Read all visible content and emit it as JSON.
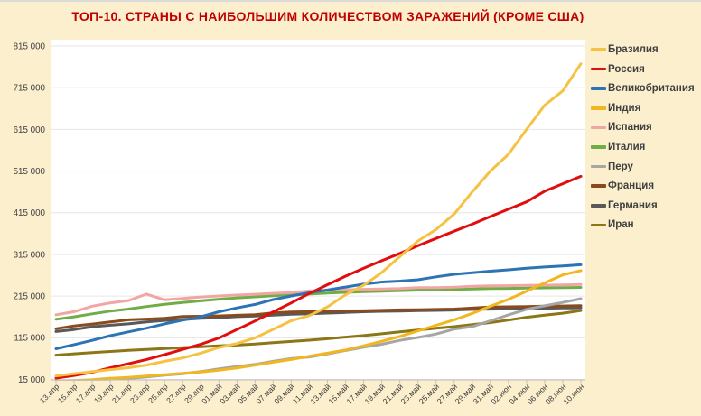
{
  "page": {
    "background": "#FCEFCE",
    "top_strip_color": "#DADADA"
  },
  "chart_data": {
    "type": "line",
    "title": "ТОП-10. СТРАНЫ С НАИБОЛЬШИМ КОЛИЧЕСТВОМ ЗАРАЖЕНИЙ (КРОМЕ США)",
    "title_color": "#C00000",
    "xlabel": "",
    "ylabel": "",
    "ylim": [
      15000,
      815000
    ],
    "grid": true,
    "legend_position": "right",
    "axis_text_color": "#404040",
    "gridline_color": "#E6E6E6",
    "axis_line_color": "#BFBFBF",
    "plot_background": "#FFFFFF",
    "y_ticks": [
      {
        "value": 15000,
        "label": "15 000"
      },
      {
        "value": 115000,
        "label": "115 000"
      },
      {
        "value": 215000,
        "label": "215 000"
      },
      {
        "value": 315000,
        "label": "315 000"
      },
      {
        "value": 415000,
        "label": "415 000"
      },
      {
        "value": 515000,
        "label": "515 000"
      },
      {
        "value": 615000,
        "label": "615 000"
      },
      {
        "value": 715000,
        "label": "715 000"
      },
      {
        "value": 815000,
        "label": "815 000"
      }
    ],
    "categories": [
      "13.апр",
      "15.апр",
      "17.апр",
      "19.апр",
      "21.апр",
      "23.апр",
      "25.апр",
      "27.апр",
      "29.апр",
      "01.май",
      "03.май",
      "05.май",
      "07.май",
      "09.май",
      "11.май",
      "13.май",
      "15.май",
      "17.май",
      "19.май",
      "21.май",
      "23.май",
      "25.май",
      "27.май",
      "29.май",
      "31.май",
      "02.июн",
      "04.июн",
      "06.июн",
      "08.июн",
      "10.июн"
    ],
    "series": [
      {
        "name": "Бразилия",
        "color": "#F5C243",
        "values": [
          23430,
          28320,
          33682,
          38654,
          43079,
          49492,
          58509,
          66501,
          78162,
          91589,
          101147,
          114715,
          135106,
          155939,
          168331,
          188974,
          218223,
          241080,
          271628,
          310087,
          347398,
          374898,
          411821,
          465166,
          514849,
          555383,
          614941,
          672846,
          707412,
          772416
        ]
      },
      {
        "name": "Россия",
        "color": "#E00E0E",
        "values": [
          18328,
          24490,
          32008,
          42853,
          52763,
          62773,
          74588,
          87147,
          99399,
          114431,
          134687,
          155370,
          177160,
          198676,
          221344,
          242271,
          262843,
          281752,
          299941,
          317554,
          335882,
          353427,
          370680,
          387623,
          405843,
          423741,
          441108,
          466627,
          484630,
          502436
        ]
      },
      {
        "name": "Великобритания",
        "color": "#2E74B5",
        "values": [
          88621,
          98476,
          108692,
          120067,
          129044,
          138078,
          148377,
          157149,
          165221,
          177454,
          186599,
          194990,
          206715,
          215260,
          223060,
          229705,
          236711,
          243695,
          248818,
          250908,
          254195,
          261184,
          267240,
          271222,
          274762,
          277985,
          281661,
          284868,
          287399,
          290143
        ]
      },
      {
        "name": "Индия",
        "color": "#F2B71E",
        "values": [
          10453,
          12370,
          14352,
          17615,
          20080,
          23039,
          26283,
          29451,
          33062,
          37257,
          42505,
          49400,
          56351,
          62808,
          70768,
          78055,
          85784,
          95698,
          106475,
          118226,
          131423,
          144950,
          158086,
          173491,
          190609,
          207191,
          226713,
          246622,
          265928,
          276146
        ]
      },
      {
        "name": "Испания",
        "color": "#F2A6A3",
        "values": [
          170099,
          177644,
          190839,
          198674,
          204178,
          219764,
          205905,
          209465,
          212917,
          215216,
          217466,
          219329,
          221447,
          223578,
          227436,
          228691,
          230183,
          231350,
          232037,
          233037,
          235290,
          235400,
          236259,
          238564,
          239429,
          239932,
          240660,
          241310,
          241717,
          242707
        ]
      },
      {
        "name": "Италия",
        "color": "#70AD47",
        "values": [
          159516,
          165155,
          172434,
          178972,
          183957,
          189973,
          195351,
          199414,
          203591,
          207428,
          210717,
          213013,
          215858,
          218268,
          219814,
          222104,
          223885,
          225435,
          226699,
          228006,
          229327,
          229858,
          231139,
          232248,
          232997,
          233515,
          234013,
          234801,
          235278,
          235763
        ]
      },
      {
        "name": "Перу",
        "color": "#A6A6A6",
        "values": [
          9784,
          11475,
          13489,
          15628,
          17837,
          20914,
          25331,
          28699,
          33931,
          40459,
          45928,
          51189,
          58526,
          65015,
          68822,
          76306,
          84495,
          92273,
          99483,
          108769,
          115754,
          123979,
          135905,
          141779,
          155671,
          170039,
          183198,
          191758,
          199696,
          208823
        ]
      },
      {
        "name": "Франция",
        "color": "#8A4A1B",
        "values": [
          136779,
          143303,
          147969,
          152894,
          158050,
          159877,
          161488,
          165842,
          166543,
          167346,
          168925,
          170551,
          174791,
          176658,
          177547,
          178184,
          179630,
          179693,
          180933,
          181826,
          182469,
          182942,
          183816,
          186238,
          188882,
          189220,
          189994,
          190759,
          191313,
          192068
        ]
      },
      {
        "name": "Германия",
        "color": "#595959",
        "values": [
          130072,
          134753,
          141397,
          145184,
          148291,
          153129,
          156513,
          158758,
          161539,
          163009,
          165664,
          167007,
          169430,
          171324,
          172576,
          174098,
          175699,
          177289,
          178473,
          179021,
          179986,
          180600,
          181524,
          182922,
          183594,
          184121,
          184923,
          185750,
          186461,
          186522
        ]
      },
      {
        "name": "Иран",
        "color": "#8C7616",
        "values": [
          73303,
          76389,
          79494,
          82211,
          84802,
          87026,
          89328,
          91472,
          93657,
          95646,
          97424,
          99970,
          103135,
          106220,
          109286,
          112725,
          116635,
          120198,
          124603,
          129341,
          133521,
          137724,
          141591,
          146668,
          151466,
          157562,
          164270,
          169425,
          173832,
          180156
        ]
      }
    ]
  }
}
